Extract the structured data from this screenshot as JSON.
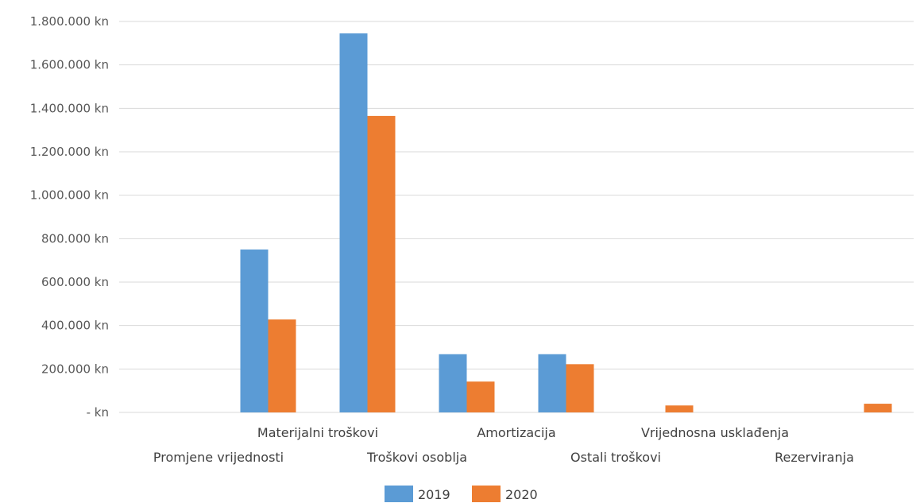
{
  "chart_data": {
    "type": "bar",
    "title": "",
    "xlabel": "",
    "ylabel": "",
    "categories": [
      "Promjene vrijednosti",
      "Materijalni troškovi",
      "Troškovi osoblja",
      "Amortizacija",
      "Ostali troškovi",
      "Vrijednosna usklađenja",
      "Rezerviranja",
      ""
    ],
    "series": [
      {
        "name": "2019",
        "color": "#5b9bd5",
        "values": [
          0,
          750000,
          1745000,
          268000,
          268000,
          0,
          0,
          0
        ]
      },
      {
        "name": "2020",
        "color": "#ed7d31",
        "values": [
          0,
          428000,
          1365000,
          142000,
          222000,
          32000,
          0,
          40000
        ]
      }
    ],
    "ylim": [
      0,
      1800000
    ],
    "yticks": [
      0,
      200000,
      400000,
      600000,
      800000,
      1000000,
      1200000,
      1400000,
      1600000,
      1800000
    ],
    "ytick_labels": [
      "- kn",
      "200.000 kn",
      "400.000 kn",
      "600.000 kn",
      "800.000 kn",
      "1.000.000 kn",
      "1.200.000 kn",
      "1.400.000 kn",
      "1.600.000 kn",
      "1.800.000 kn"
    ],
    "grid": true,
    "legend": "bottom-center",
    "gridline_color": "#d9d9d9"
  }
}
